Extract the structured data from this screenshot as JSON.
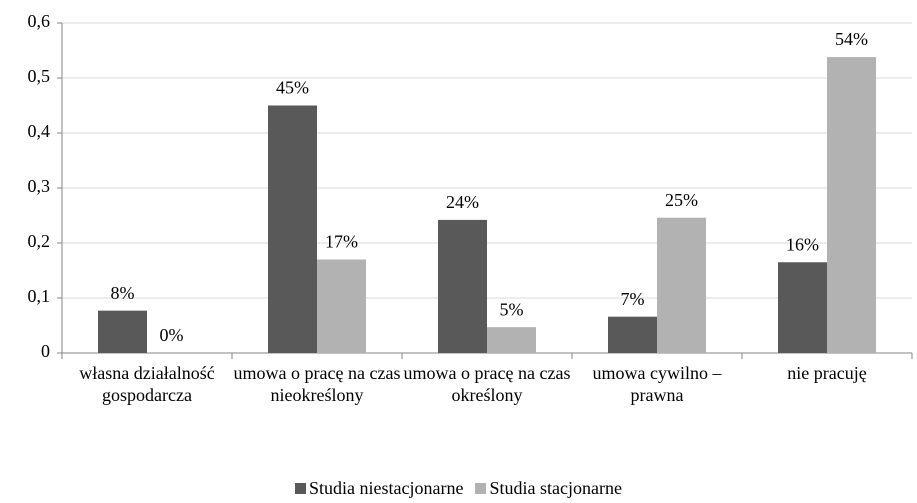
{
  "chart_data": {
    "type": "bar",
    "categories": [
      "własna działalność gospodarcza",
      "umowa o pracę na czas nieokreślony",
      "umowa o pracę na czas określony",
      "umowa cywilno – prawna",
      "nie pracuję"
    ],
    "series": [
      {
        "name": "Studia niestacjonarne",
        "color": "#595959",
        "values": [
          0.077,
          0.45,
          0.242,
          0.066,
          0.165
        ],
        "value_labels": [
          "8%",
          "45%",
          "24%",
          "7%",
          "16%"
        ]
      },
      {
        "name": "Studia stacjonarne",
        "color": "#b2b2b2",
        "values": [
          0,
          0.17,
          0.047,
          0.246,
          0.538
        ],
        "value_labels": [
          "0%",
          "17%",
          "5%",
          "25%",
          "54%"
        ]
      }
    ],
    "ylim": [
      0,
      0.6
    ],
    "yticks": [
      0,
      {
        "value": 0.1,
        "label": "0,1"
      },
      {
        "value": 0.2,
        "label": "0,2"
      },
      {
        "value": 0.3,
        "label": "0,3"
      },
      {
        "value": 0.4,
        "label": "0,4"
      },
      {
        "value": 0.5,
        "label": "0,5"
      },
      {
        "value": 0.6,
        "label": "0,6"
      }
    ],
    "grid": true,
    "legend": "bottom"
  }
}
